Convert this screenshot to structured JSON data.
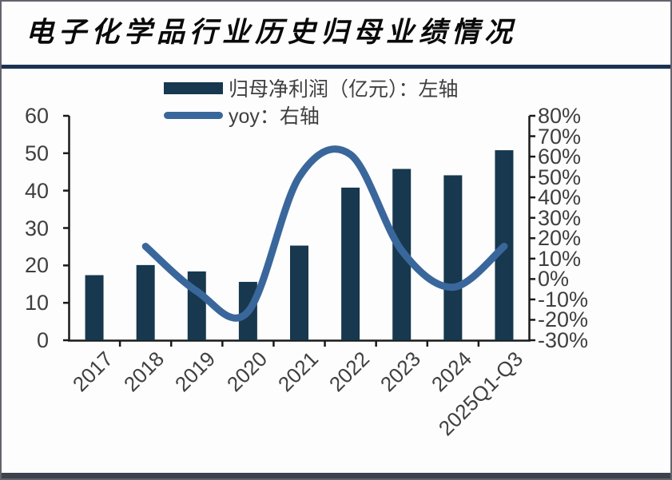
{
  "slide": {
    "title": "电子化学品行业历史归母业绩情况"
  },
  "legend": {
    "items": [
      {
        "label": "归母净利润（亿元）：左轴",
        "swatch": "bar-swatch",
        "color": "#17384e"
      },
      {
        "label": "yoy：右轴",
        "swatch": "line-swatch",
        "color": "#3a679b"
      }
    ]
  },
  "chart_data": {
    "type": "combo-bar-line",
    "categories": [
      "2017",
      "2018",
      "2019",
      "2020",
      "2021",
      "2022",
      "2023",
      "2024",
      "2025Q1-Q3"
    ],
    "series": [
      {
        "name": "归母净利润（亿元）：左轴",
        "type": "bar",
        "axis": "left",
        "color": "#17384e",
        "values": [
          17.4,
          20.1,
          18.4,
          15.6,
          25.3,
          40.8,
          45.8,
          44.1,
          50.8
        ]
      },
      {
        "name": "yoy：右轴",
        "type": "line",
        "axis": "right",
        "unit": "%",
        "color": "#3a679b",
        "values": [
          null,
          16,
          -6,
          -16,
          50,
          61,
          14,
          -4,
          16
        ]
      }
    ],
    "left_axis": {
      "ticks": [
        "60",
        "50",
        "40",
        "30",
        "20",
        "10",
        "0"
      ],
      "range": [
        0,
        60
      ]
    },
    "right_axis": {
      "ticks": [
        "80%",
        "70%",
        "60%",
        "50%",
        "40%",
        "30%",
        "20%",
        "10%",
        "0%",
        "-10%",
        "-20%",
        "-30%"
      ],
      "range": [
        -30,
        80
      ],
      "unit": "%"
    },
    "grid": false,
    "legend_position": "top-center",
    "axis_color": "#1a1a1a"
  }
}
